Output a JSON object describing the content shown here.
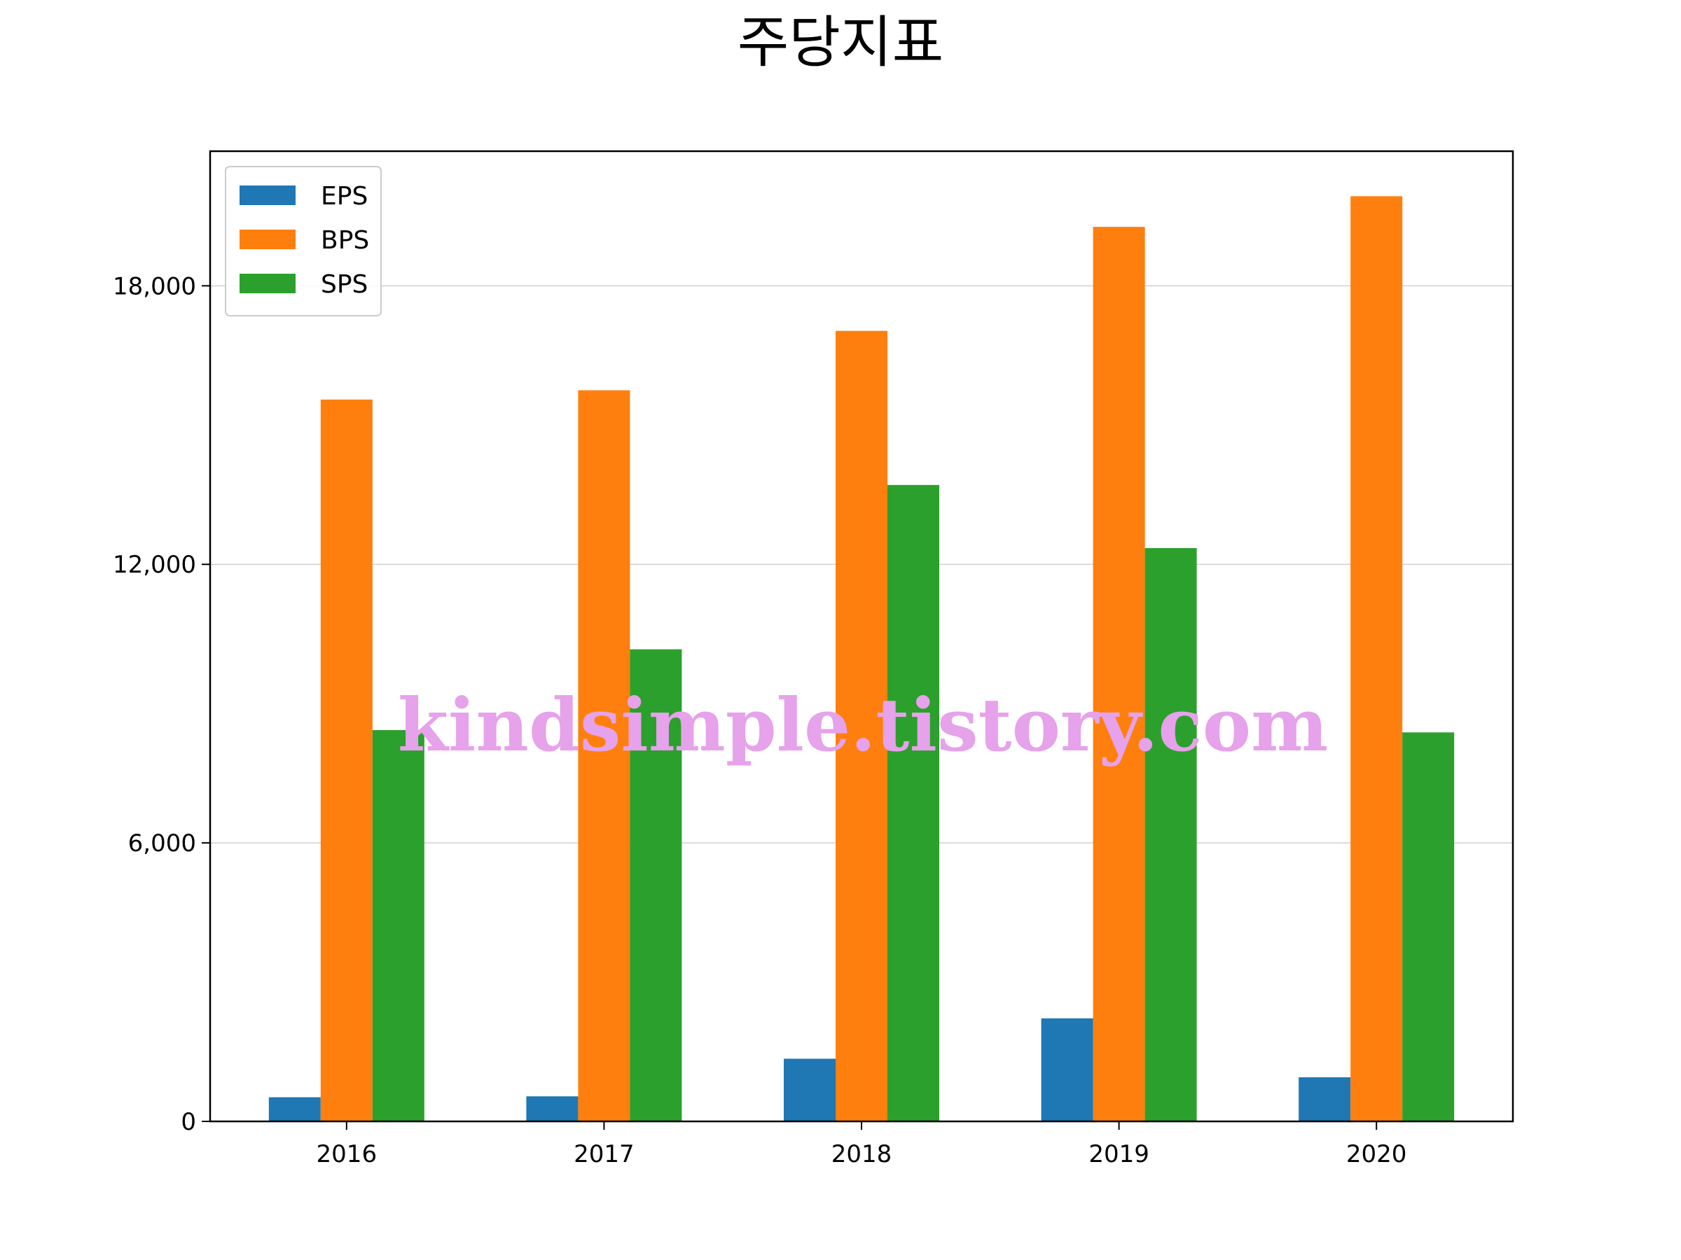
{
  "chart_data": {
    "type": "bar",
    "title": "주당지표",
    "xlabel": "",
    "ylabel": "",
    "categories": [
      "2016",
      "2017",
      "2018",
      "2019",
      "2020"
    ],
    "series": [
      {
        "name": "EPS",
        "color": "#1f77b4",
        "values": [
          520,
          540,
          1350,
          2220,
          950
        ]
      },
      {
        "name": "BPS",
        "color": "#ff7f0e",
        "values": [
          15550,
          15750,
          17030,
          19270,
          19930
        ]
      },
      {
        "name": "SPS",
        "color": "#2ca02c",
        "values": [
          8430,
          10170,
          13710,
          12350,
          8380
        ]
      }
    ],
    "ylim": [
      0,
      20900
    ],
    "yticks": [
      0,
      6000,
      12000,
      18000
    ],
    "ytick_labels": [
      "0",
      "6,000",
      "12,000",
      "18,000"
    ],
    "grid": "y",
    "legend_position": "top-left",
    "watermark": "kindsimple.tistory.com"
  }
}
